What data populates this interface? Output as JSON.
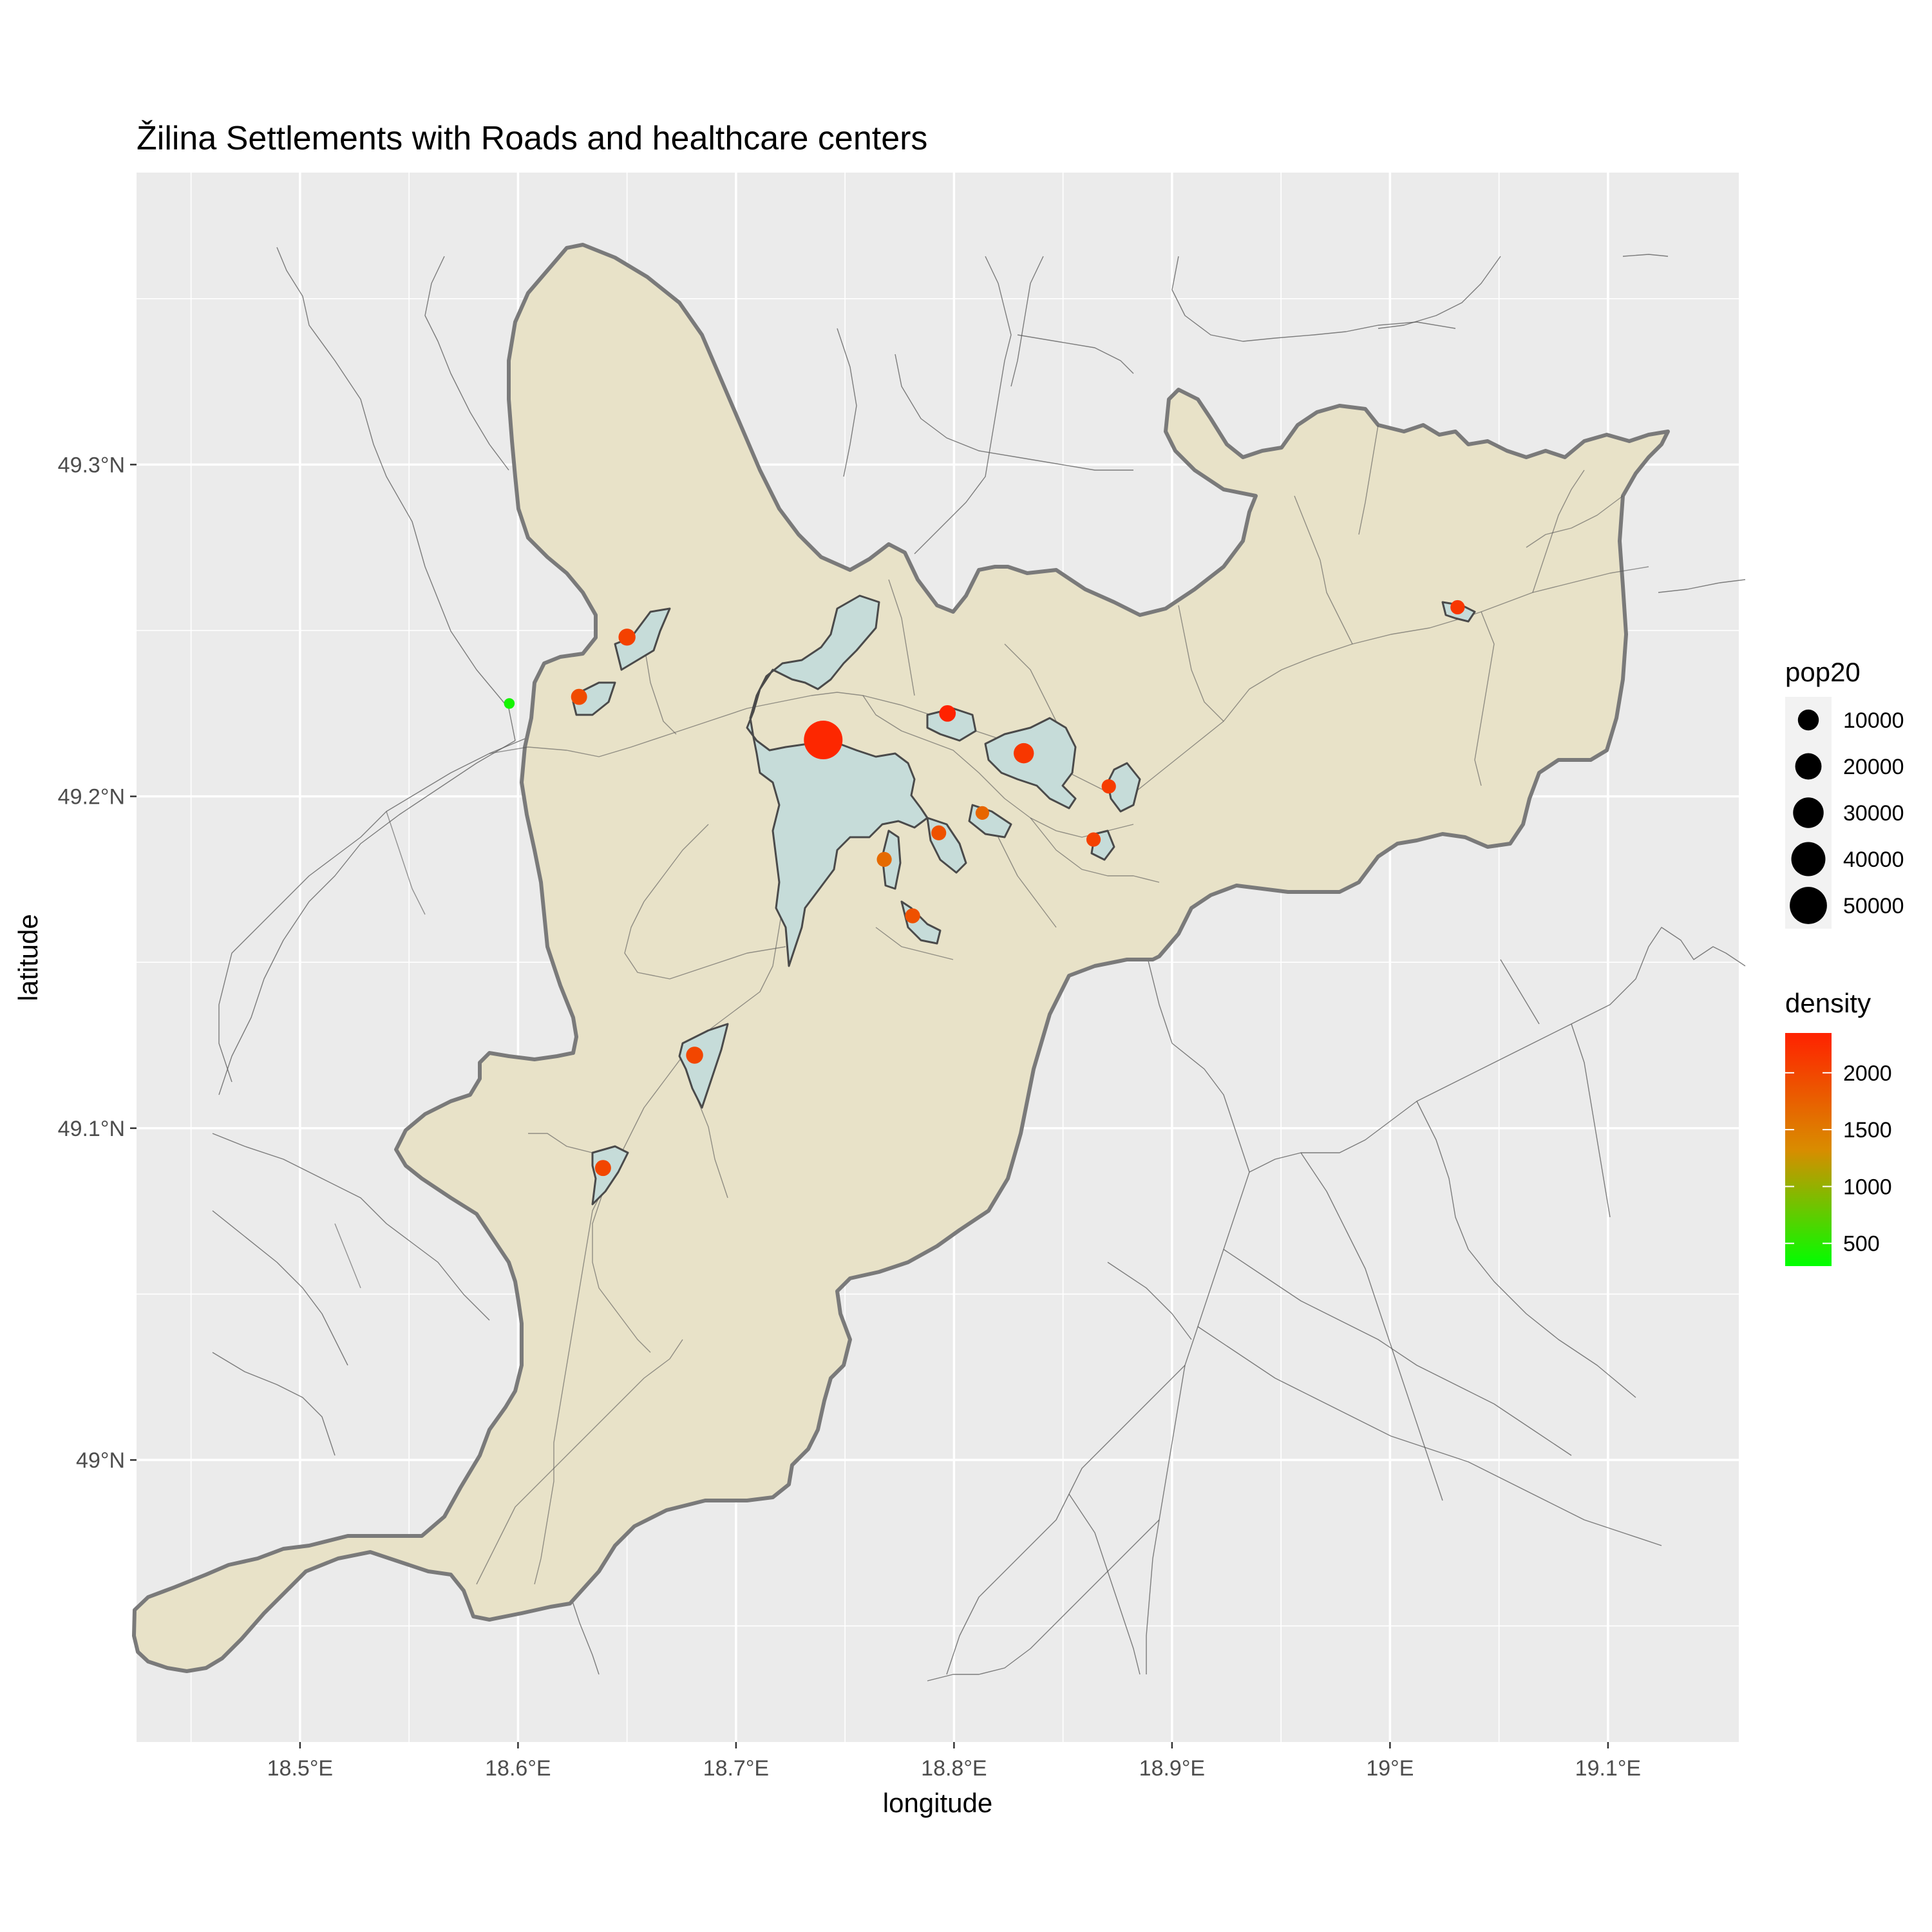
{
  "plot": {
    "title": "Žilina Settlements with Roads and healthcare centers",
    "xlabel": "longitude",
    "ylabel": "latitude",
    "xlim": [
      18.425,
      19.16
    ],
    "ylim": [
      48.915,
      49.388
    ],
    "x_ticks": [
      {
        "value": 18.5,
        "label": "18.5°E"
      },
      {
        "value": 18.6,
        "label": "18.6°E"
      },
      {
        "value": 18.7,
        "label": "18.7°E"
      },
      {
        "value": 18.8,
        "label": "18.8°E"
      },
      {
        "value": 18.9,
        "label": "18.9°E"
      },
      {
        "value": 19.0,
        "label": "19°E"
      },
      {
        "value": 19.1,
        "label": "19.1°E"
      }
    ],
    "y_ticks": [
      {
        "value": 49.0,
        "label": "49°N"
      },
      {
        "value": 49.1,
        "label": "49.1°N"
      },
      {
        "value": 49.2,
        "label": "49.2°N"
      },
      {
        "value": 49.3,
        "label": "49.3°N"
      }
    ],
    "grid": true,
    "colors": {
      "panel": "#ebebeb",
      "grid": "#ffffff",
      "district_fill": "#e8e2c8",
      "district_stroke": "#7a7a7a",
      "settlement_fill": "#c6dcd9",
      "settlement_stroke": "#4a4a4a",
      "road": "#555555",
      "density_low": "#00ff00",
      "density_mid": "#d98c00",
      "density_high": "#ff2200"
    }
  },
  "legend": {
    "position": "right",
    "size_title": "pop20",
    "size_entries": [
      {
        "value": 10000,
        "label": "10000"
      },
      {
        "value": 20000,
        "label": "20000"
      },
      {
        "value": 30000,
        "label": "30000"
      },
      {
        "value": 40000,
        "label": "40000"
      },
      {
        "value": 50000,
        "label": "50000"
      }
    ],
    "color_title": "density",
    "color_range": [
      300,
      2350
    ],
    "color_ticks": [
      {
        "value": 500,
        "label": "500"
      },
      {
        "value": 1000,
        "label": "1000"
      },
      {
        "value": 1500,
        "label": "1500"
      },
      {
        "value": 2000,
        "label": "2000"
      }
    ]
  },
  "chart_data": {
    "type": "scatter",
    "x_var": "longitude",
    "y_var": "latitude",
    "size_var": "pop20",
    "color_var": "density",
    "points": [
      {
        "lon": 18.74,
        "lat": 49.217,
        "pop20": 55000,
        "density": 2300
      },
      {
        "lon": 18.797,
        "lat": 49.225,
        "pop20": 4500,
        "density": 2350
      },
      {
        "lon": 18.832,
        "lat": 49.213,
        "pop20": 9000,
        "density": 2150
      },
      {
        "lon": 18.65,
        "lat": 49.248,
        "pop20": 5000,
        "density": 2050
      },
      {
        "lon": 18.628,
        "lat": 49.23,
        "pop20": 4000,
        "density": 1950
      },
      {
        "lon": 18.596,
        "lat": 49.228,
        "pop20": 500,
        "density": 400
      },
      {
        "lon": 18.871,
        "lat": 49.203,
        "pop20": 2500,
        "density": 2100
      },
      {
        "lon": 18.864,
        "lat": 49.187,
        "pop20": 2500,
        "density": 2050
      },
      {
        "lon": 18.813,
        "lat": 49.195,
        "pop20": 2000,
        "density": 1700
      },
      {
        "lon": 18.793,
        "lat": 49.189,
        "pop20": 3000,
        "density": 1900
      },
      {
        "lon": 18.768,
        "lat": 49.181,
        "pop20": 3000,
        "density": 1650
      },
      {
        "lon": 18.781,
        "lat": 49.164,
        "pop20": 3000,
        "density": 1900
      },
      {
        "lon": 18.681,
        "lat": 49.122,
        "pop20": 5000,
        "density": 2000
      },
      {
        "lon": 18.639,
        "lat": 49.088,
        "pop20": 4000,
        "density": 2000
      },
      {
        "lon": 19.031,
        "lat": 49.257,
        "pop20": 2500,
        "density": 2150
      }
    ],
    "district_boundary": [
      [
        18.463,
        49.283
      ],
      [
        18.471,
        49.29
      ],
      [
        18.479,
        49.294
      ],
      [
        18.488,
        49.288
      ],
      [
        18.505,
        49.276
      ],
      [
        18.518,
        49.256
      ],
      [
        18.527,
        49.244
      ],
      [
        18.531,
        49.232
      ],
      [
        18.54,
        49.222
      ],
      [
        18.551,
        49.216
      ],
      [
        18.562,
        49.211
      ],
      [
        18.568,
        49.2
      ],
      [
        18.575,
        49.188
      ],
      [
        18.587,
        49.175
      ],
      [
        18.6,
        49.165
      ],
      [
        18.614,
        49.16
      ],
      [
        18.628,
        49.158
      ],
      [
        18.64,
        49.16
      ],
      [
        18.654,
        49.16
      ],
      [
        18.665,
        49.152
      ],
      [
        18.668,
        49.145
      ],
      [
        18.679,
        49.138
      ],
      [
        18.692,
        49.133
      ],
      [
        18.703,
        49.138
      ],
      [
        18.716,
        49.14
      ],
      [
        18.73,
        49.139
      ],
      [
        18.748,
        49.139
      ],
      [
        18.761,
        49.139
      ],
      [
        18.771,
        49.147
      ],
      [
        18.785,
        49.141
      ],
      [
        18.8,
        49.142
      ],
      [
        18.817,
        49.14
      ],
      [
        18.83,
        49.141
      ],
      [
        18.839,
        49.151
      ],
      [
        18.851,
        49.158
      ],
      [
        18.873,
        49.153
      ],
      [
        18.895,
        49.153
      ],
      [
        18.905,
        49.149
      ],
      [
        18.916,
        49.141
      ],
      [
        18.935,
        49.137
      ],
      [
        18.96,
        49.135
      ],
      [
        18.982,
        49.137
      ],
      [
        19.004,
        49.14
      ],
      [
        19.024,
        49.145
      ],
      [
        19.041,
        49.153
      ],
      [
        19.055,
        49.164
      ],
      [
        19.071,
        49.171
      ],
      [
        19.088,
        49.178
      ],
      [
        19.1,
        49.18
      ],
      [
        19.11,
        49.172
      ],
      [
        19.126,
        49.181
      ],
      [
        19.13,
        49.194
      ],
      [
        19.134,
        49.207
      ],
      [
        19.138,
        49.215
      ],
      [
        19.152,
        49.216
      ],
      [
        19.162,
        49.223
      ],
      [
        19.169,
        49.231
      ],
      [
        19.175,
        49.246
      ],
      [
        19.178,
        49.263
      ],
      [
        19.176,
        49.276
      ],
      [
        19.171,
        49.288
      ],
      [
        19.162,
        49.299
      ],
      [
        19.154,
        49.303
      ],
      [
        19.14,
        49.306
      ],
      [
        19.125,
        49.305
      ],
      [
        19.11,
        49.31
      ],
      [
        19.095,
        49.317
      ],
      [
        19.075,
        49.321
      ],
      [
        19.055,
        49.32
      ],
      [
        19.04,
        49.318
      ],
      [
        19.024,
        49.313
      ],
      [
        19.005,
        49.312
      ],
      [
        18.99,
        49.318
      ],
      [
        18.975,
        49.322
      ],
      [
        18.955,
        49.323
      ],
      [
        18.94,
        49.318
      ],
      [
        18.927,
        49.31
      ],
      [
        18.913,
        49.305
      ],
      [
        18.898,
        49.3
      ],
      [
        18.885,
        49.29
      ],
      [
        18.875,
        49.278
      ],
      [
        18.86,
        49.273
      ],
      [
        18.845,
        49.265
      ],
      [
        18.83,
        49.258
      ],
      [
        18.815,
        49.257
      ],
      [
        18.8,
        49.259
      ],
      [
        18.785,
        49.262
      ],
      [
        18.77,
        49.266
      ],
      [
        18.757,
        49.271
      ],
      [
        18.747,
        49.28
      ],
      [
        18.735,
        49.289
      ],
      [
        18.718,
        49.295
      ],
      [
        18.7,
        49.303
      ],
      [
        18.684,
        49.314
      ],
      [
        18.672,
        49.327
      ],
      [
        18.662,
        49.34
      ],
      [
        18.65,
        49.353
      ],
      [
        18.64,
        49.364
      ],
      [
        18.63,
        49.374
      ],
      [
        18.622,
        49.381
      ],
      [
        18.613,
        49.383
      ],
      [
        18.604,
        49.381
      ],
      [
        18.597,
        49.375
      ],
      [
        18.591,
        49.37
      ],
      [
        18.584,
        49.37
      ],
      [
        18.575,
        49.366
      ],
      [
        18.571,
        49.357
      ],
      [
        18.567,
        49.348
      ],
      [
        18.565,
        49.34
      ],
      [
        18.563,
        49.332
      ],
      [
        18.564,
        49.322
      ],
      [
        18.563,
        49.312
      ],
      [
        18.565,
        49.302
      ],
      [
        18.568,
        49.293
      ],
      [
        18.573,
        49.286
      ],
      [
        18.58,
        49.279
      ],
      [
        18.585,
        49.271
      ],
      [
        18.59,
        49.265
      ],
      [
        18.594,
        49.258
      ],
      [
        18.598,
        49.252
      ],
      [
        18.603,
        49.244
      ],
      [
        18.605,
        49.236
      ],
      [
        18.604,
        49.228
      ],
      [
        18.6,
        49.222
      ],
      [
        18.596,
        49.215
      ],
      [
        18.595,
        49.205
      ],
      [
        18.594,
        49.196
      ],
      [
        18.588,
        49.188
      ],
      [
        18.58,
        49.182
      ],
      [
        18.571,
        49.175
      ],
      [
        18.563,
        49.168
      ],
      [
        18.553,
        49.16
      ],
      [
        18.543,
        49.152
      ],
      [
        18.53,
        49.145
      ],
      [
        18.516,
        49.138
      ],
      [
        18.505,
        49.13
      ],
      [
        18.495,
        49.12
      ],
      [
        18.486,
        49.11
      ],
      [
        18.478,
        49.1
      ],
      [
        18.47,
        49.09
      ],
      [
        18.465,
        49.082
      ],
      [
        18.462,
        49.072
      ],
      [
        18.459,
        49.063
      ],
      [
        18.458,
        49.053
      ],
      [
        18.459,
        49.044
      ],
      [
        18.462,
        49.035
      ],
      [
        18.466,
        49.026
      ],
      [
        18.47,
        49.016
      ],
      [
        18.474,
        49.006
      ],
      [
        18.476,
        48.995
      ],
      [
        18.477,
        48.984
      ],
      [
        18.474,
        48.972
      ],
      [
        18.469,
        48.961
      ],
      [
        18.464,
        48.951
      ],
      [
        18.461,
        48.94
      ],
      [
        18.461,
        48.93
      ],
      [
        18.463,
        48.92
      ],
      [
        18.468,
        48.91
      ],
      [
        18.474,
        48.898
      ],
      [
        18.478,
        48.888
      ],
      [
        18.484,
        48.876
      ],
      [
        18.491,
        48.866
      ],
      [
        18.498,
        48.857
      ],
      [
        18.504,
        48.847
      ],
      [
        18.508,
        48.839
      ],
      [
        18.513,
        48.832
      ],
      [
        18.5,
        48.83
      ],
      [
        18.489,
        48.835
      ],
      [
        18.476,
        48.845
      ],
      [
        18.466,
        48.86
      ],
      [
        18.456,
        48.876
      ],
      [
        18.45,
        48.893
      ],
      [
        18.447,
        48.908
      ],
      [
        18.445,
        48.92
      ],
      [
        18.446,
        48.935
      ],
      [
        18.452,
        48.95
      ],
      [
        18.457,
        48.965
      ],
      [
        18.461,
        48.981
      ],
      [
        18.465,
        48.996
      ],
      [
        18.466,
        49.012
      ],
      [
        18.465,
        49.028
      ],
      [
        18.463,
        49.043
      ],
      [
        18.461,
        49.058
      ],
      [
        18.46,
        49.073
      ],
      [
        18.458,
        49.088
      ],
      [
        18.458,
        49.103
      ],
      [
        18.458,
        49.12
      ],
      [
        18.457,
        49.137
      ],
      [
        18.456,
        49.154
      ],
      [
        18.456,
        49.172
      ],
      [
        18.456,
        49.19
      ],
      [
        18.457,
        49.21
      ],
      [
        18.458,
        49.23
      ],
      [
        18.459,
        49.25
      ],
      [
        18.46,
        49.268
      ],
      [
        18.463,
        49.283
      ]
    ],
    "_comment_chart": "district_boundary is a placeholder replaced below"
  }
}
